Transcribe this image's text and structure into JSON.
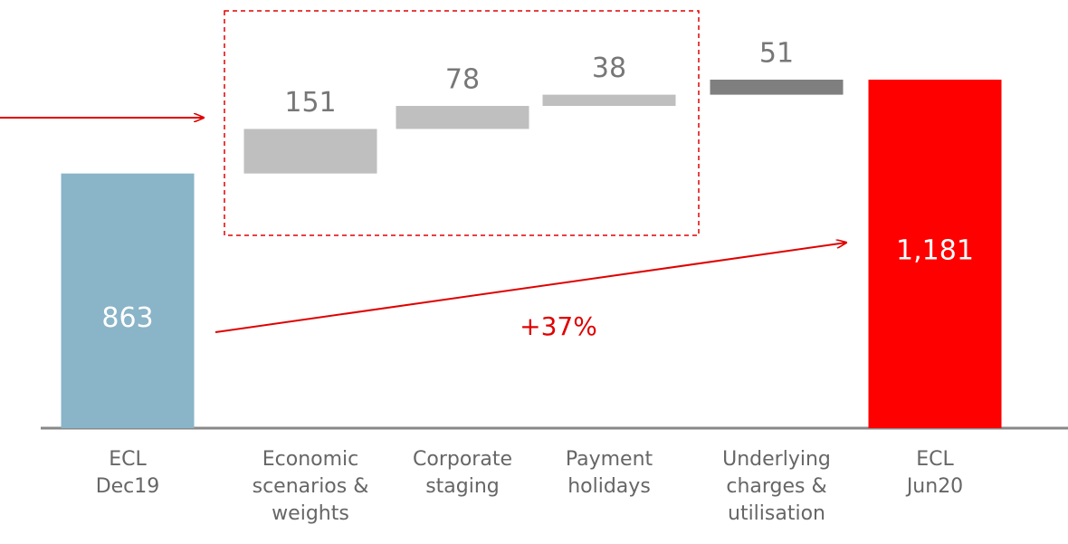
{
  "chart_data": {
    "type": "waterfall",
    "categories": [
      "ECL\nDec19",
      "Economic\nscenarios &\nweights",
      "Corporate\nstaging",
      "Payment\nholidays",
      "Underlying\ncharges &\nutilisation",
      "ECL\nJun20"
    ],
    "values": [
      863,
      151,
      78,
      38,
      51,
      1181
    ],
    "value_labels": [
      "863",
      "151",
      "78",
      "38",
      "51",
      "1,181"
    ],
    "measure": [
      "absolute",
      "relative",
      "relative",
      "relative",
      "relative",
      "total"
    ],
    "colors": [
      "#8ab4c8",
      "#bfbfbf",
      "#bfbfbf",
      "#bfbfbf",
      "#7f7f7f",
      "#ff0000"
    ],
    "annotation": "+37%"
  }
}
